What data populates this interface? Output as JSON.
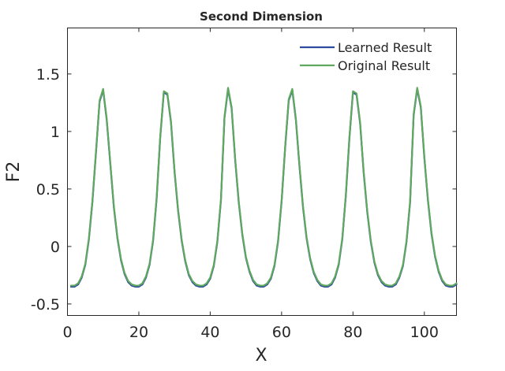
{
  "chart_data": {
    "type": "line",
    "title": "Second Dimension",
    "xlabel": "X",
    "ylabel": "F2",
    "xlim": [
      0,
      109
    ],
    "ylim": [
      -0.6,
      1.9
    ],
    "xticks": [
      0,
      20,
      40,
      60,
      80,
      100
    ],
    "xtick_labels": [
      "0",
      "20",
      "40",
      "60",
      "80",
      "100"
    ],
    "yticks": [
      -0.5,
      0,
      0.5,
      1,
      1.5
    ],
    "ytick_labels": [
      "-0.5",
      "0",
      "0.5",
      "1",
      "1.5"
    ],
    "grid": false,
    "legend_position": "top-right",
    "series": [
      {
        "name": "Learned Result",
        "color": "#2e4a9e",
        "x": [
          1,
          2,
          3,
          4,
          5,
          6,
          7,
          8,
          9,
          10,
          11,
          12,
          13,
          14,
          15,
          16,
          17,
          18,
          19,
          20,
          21,
          22,
          23,
          24,
          25,
          26,
          27,
          28,
          29,
          30,
          31,
          32,
          33,
          34,
          35,
          36,
          37,
          38,
          39,
          40,
          41,
          42,
          43,
          44,
          45,
          46,
          47,
          48,
          49,
          50,
          51,
          52,
          53,
          54,
          55,
          56,
          57,
          58,
          59,
          60,
          61,
          62,
          63,
          64,
          65,
          66,
          67,
          68,
          69,
          70,
          71,
          72,
          73,
          74,
          75,
          76,
          77,
          78,
          79,
          80,
          81,
          82,
          83,
          84,
          85,
          86,
          87,
          88,
          89,
          90,
          91,
          92,
          93,
          94,
          95,
          96,
          97,
          98,
          99,
          100,
          101,
          102,
          103,
          104,
          105,
          106,
          107,
          108,
          109
        ],
        "y": [
          -0.35,
          -0.35,
          -0.33,
          -0.27,
          -0.16,
          0.06,
          0.39,
          0.82,
          1.26,
          1.36,
          1.1,
          0.72,
          0.34,
          0.07,
          -0.12,
          -0.24,
          -0.31,
          -0.34,
          -0.35,
          -0.35,
          -0.33,
          -0.27,
          -0.16,
          0.05,
          0.42,
          0.95,
          1.34,
          1.32,
          1.08,
          0.65,
          0.31,
          0.05,
          -0.13,
          -0.25,
          -0.31,
          -0.34,
          -0.35,
          -0.35,
          -0.33,
          -0.28,
          -0.17,
          0.04,
          0.4,
          1.12,
          1.37,
          1.2,
          0.75,
          0.38,
          0.1,
          -0.1,
          -0.22,
          -0.3,
          -0.34,
          -0.35,
          -0.35,
          -0.33,
          -0.28,
          -0.17,
          0.04,
          0.39,
          0.86,
          1.27,
          1.36,
          1.1,
          0.7,
          0.34,
          0.07,
          -0.11,
          -0.23,
          -0.3,
          -0.34,
          -0.35,
          -0.35,
          -0.33,
          -0.27,
          -0.16,
          0.06,
          0.44,
          0.94,
          1.34,
          1.32,
          1.07,
          0.64,
          0.3,
          0.04,
          -0.14,
          -0.25,
          -0.31,
          -0.34,
          -0.35,
          -0.35,
          -0.33,
          -0.27,
          -0.17,
          0.04,
          0.38,
          1.14,
          1.37,
          1.21,
          0.77,
          0.4,
          0.11,
          -0.09,
          -0.22,
          -0.3,
          -0.34,
          -0.35,
          -0.35,
          -0.33
        ]
      },
      {
        "name": "Original Result",
        "color": "#5fa85f",
        "x": [
          1,
          2,
          3,
          4,
          5,
          6,
          7,
          8,
          9,
          10,
          11,
          12,
          13,
          14,
          15,
          16,
          17,
          18,
          19,
          20,
          21,
          22,
          23,
          24,
          25,
          26,
          27,
          28,
          29,
          30,
          31,
          32,
          33,
          34,
          35,
          36,
          37,
          38,
          39,
          40,
          41,
          42,
          43,
          44,
          45,
          46,
          47,
          48,
          49,
          50,
          51,
          52,
          53,
          54,
          55,
          56,
          57,
          58,
          59,
          60,
          61,
          62,
          63,
          64,
          65,
          66,
          67,
          68,
          69,
          70,
          71,
          72,
          73,
          74,
          75,
          76,
          77,
          78,
          79,
          80,
          81,
          82,
          83,
          84,
          85,
          86,
          87,
          88,
          89,
          90,
          91,
          92,
          93,
          94,
          95,
          96,
          97,
          98,
          99,
          100,
          101,
          102,
          103,
          104,
          105,
          106,
          107,
          108,
          109
        ],
        "y": [
          -0.34,
          -0.34,
          -0.32,
          -0.26,
          -0.15,
          0.07,
          0.4,
          0.83,
          1.27,
          1.37,
          1.11,
          0.73,
          0.35,
          0.08,
          -0.11,
          -0.23,
          -0.3,
          -0.33,
          -0.34,
          -0.34,
          -0.32,
          -0.26,
          -0.15,
          0.06,
          0.43,
          0.96,
          1.35,
          1.33,
          1.09,
          0.66,
          0.32,
          0.06,
          -0.12,
          -0.24,
          -0.3,
          -0.33,
          -0.34,
          -0.34,
          -0.32,
          -0.27,
          -0.16,
          0.05,
          0.41,
          1.13,
          1.38,
          1.21,
          0.76,
          0.39,
          0.11,
          -0.09,
          -0.21,
          -0.29,
          -0.33,
          -0.34,
          -0.34,
          -0.32,
          -0.27,
          -0.16,
          0.05,
          0.4,
          0.87,
          1.28,
          1.37,
          1.11,
          0.71,
          0.35,
          0.08,
          -0.1,
          -0.22,
          -0.29,
          -0.33,
          -0.34,
          -0.34,
          -0.32,
          -0.26,
          -0.15,
          0.07,
          0.45,
          0.95,
          1.35,
          1.33,
          1.08,
          0.65,
          0.31,
          0.05,
          -0.13,
          -0.24,
          -0.3,
          -0.33,
          -0.34,
          -0.34,
          -0.32,
          -0.26,
          -0.16,
          0.05,
          0.39,
          1.15,
          1.38,
          1.22,
          0.78,
          0.41,
          0.12,
          -0.08,
          -0.21,
          -0.29,
          -0.33,
          -0.34,
          -0.34,
          -0.32
        ]
      }
    ]
  }
}
